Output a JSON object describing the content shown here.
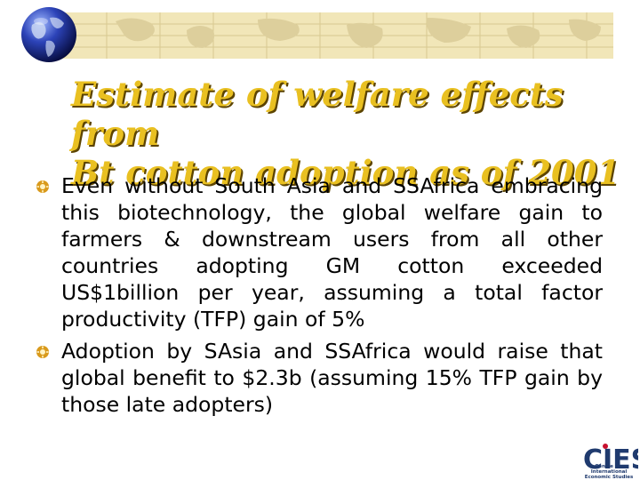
{
  "slide": {
    "title_lines": [
      "Estimate of welfare effects from",
      "Bt cotton adoption as of 2001"
    ],
    "bullets": [
      "Even without South Asia and SSAfrica embracing this biotechnology, the global welfare gain to farmers & downstream users from all other countries adopting GM cotton exceeded US$1billion per year, assuming a total factor productivity (TFP) gain of 5%",
      "Adoption by SAsia and SSAfrica would raise that global benefit to $2.3b (assuming 15% TFP gain by those late adopters)"
    ]
  },
  "logo": {
    "wordmark": "CIES",
    "caption_line1": "Centre for International",
    "caption_line2": "Economic Studies"
  },
  "colors": {
    "title": "#e9c021",
    "title_shadow": "#5c4400",
    "banner": "#f1e6b8",
    "bullet": "#d99a1c",
    "logo_blue": "#1f3a6e",
    "logo_red": "#c8102e"
  },
  "icons": [
    "globe-icon",
    "bullet-icon",
    "cies-logo"
  ]
}
